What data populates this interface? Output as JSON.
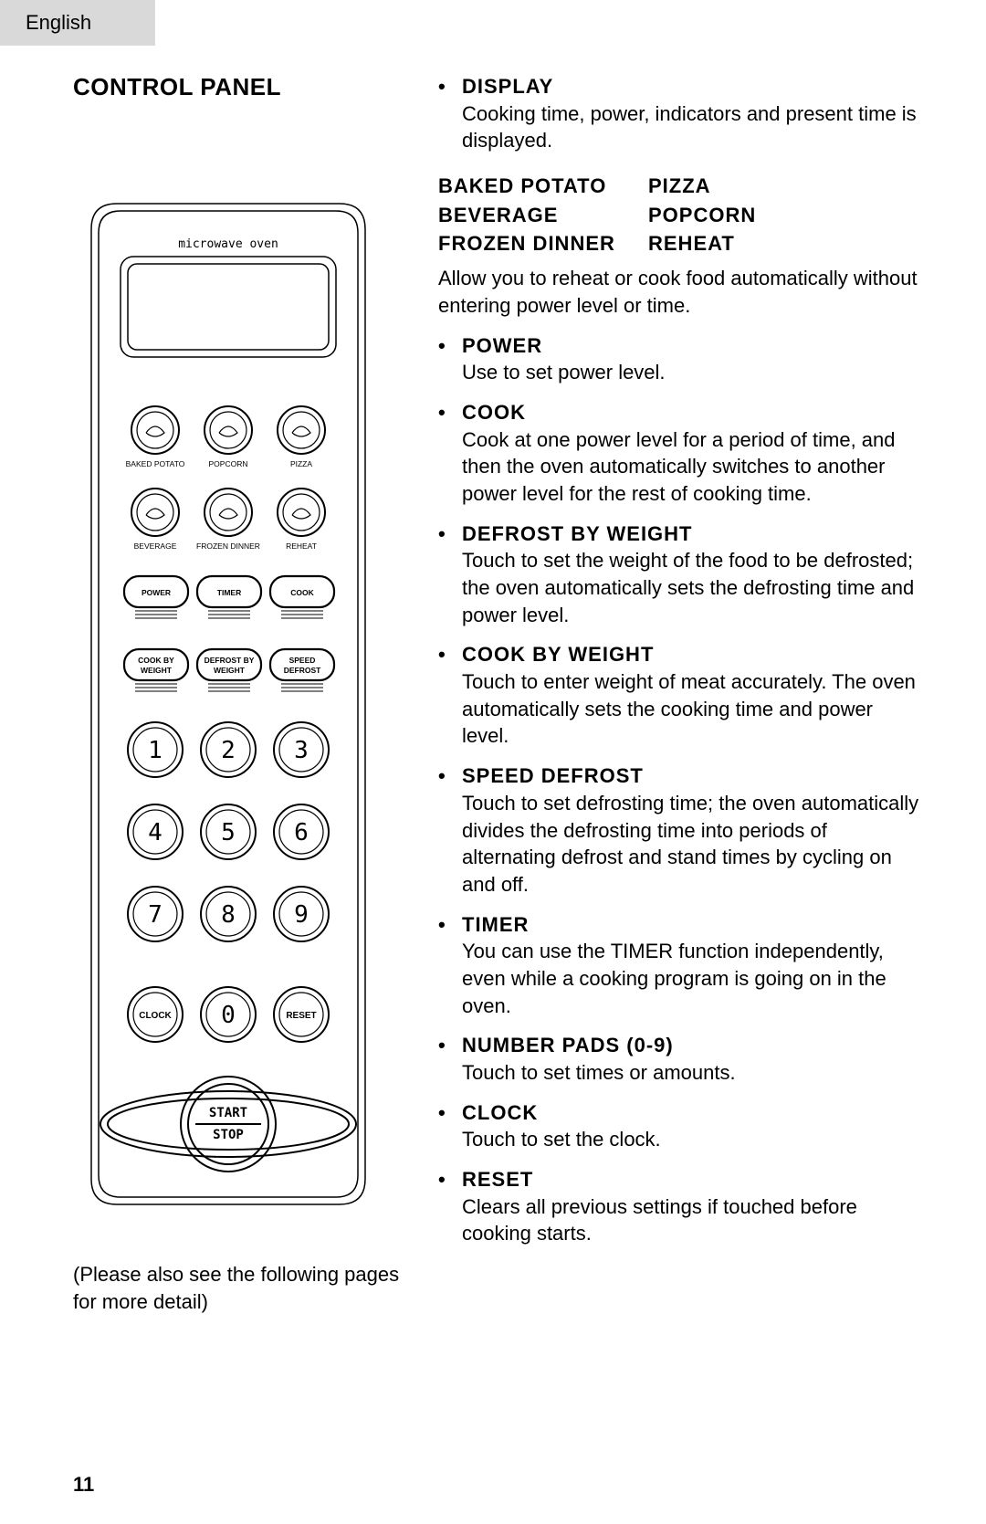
{
  "lang_tab": "English",
  "page_number": "11",
  "left": {
    "title": "CONTROL PANEL",
    "caption": "(Please also see the following pages for more detail)"
  },
  "panel": {
    "brand": "microwave oven",
    "presets": [
      {
        "label": "BAKED POTATO"
      },
      {
        "label": "POPCORN"
      },
      {
        "label": "PIZZA"
      },
      {
        "label": "BEVERAGE"
      },
      {
        "label": "FROZEN DINNER"
      },
      {
        "label": "REHEAT"
      }
    ],
    "func_buttons": [
      {
        "label": "POWER"
      },
      {
        "label": "TIMER"
      },
      {
        "label": "COOK"
      },
      {
        "label": "COOK BY\nWEIGHT"
      },
      {
        "label": "DEFROST BY\nWEIGHT"
      },
      {
        "label": "SPEED\nDEFROST"
      }
    ],
    "digits": [
      "1",
      "2",
      "3",
      "4",
      "5",
      "6",
      "7",
      "8",
      "9"
    ],
    "bottom_row": [
      {
        "label": "CLOCK"
      },
      {
        "label": "0"
      },
      {
        "label": "RESET"
      }
    ],
    "start_stop_top": "START",
    "start_stop_bot": "STOP"
  },
  "right": {
    "first": {
      "head": "DISPLAY",
      "desc": "Cooking time, power, indicators and present time is displayed."
    },
    "preset_grid": [
      [
        "BAKED POTATO",
        "PIZZA"
      ],
      [
        "BEVERAGE",
        "POPCORN"
      ],
      [
        "FROZEN DINNER",
        "REHEAT"
      ]
    ],
    "preset_desc": "Allow you to reheat or cook food automatically without entering power level or time.",
    "bullets": [
      {
        "head": "POWER",
        "desc": "Use to set power level."
      },
      {
        "head": "COOK",
        "desc": "Cook at one power level for a period of time, and then the oven automatically switches to another power level for the rest of cooking time."
      },
      {
        "head": "DEFROST BY WEIGHT",
        "desc": "Touch to set the weight of the food to be defrosted; the oven automatically sets the defrosting time and power level."
      },
      {
        "head": "COOK BY WEIGHT",
        "desc": "Touch to enter weight of meat accurately.  The oven automatically sets the cooking time and power level."
      },
      {
        "head": "SPEED DEFROST",
        "desc": "Touch to set defrosting time; the oven automatically divides the defrosting time into periods of alternating defrost and stand times by cycling on and off."
      },
      {
        "head": "TIMER",
        "desc": "You can use the TIMER function independently, even while a cooking program is going on in the oven."
      },
      {
        "head": "NUMBER PADS (0-9)",
        "desc": "Touch to set times or amounts."
      },
      {
        "head": "CLOCK",
        "desc": "Touch to set the clock."
      },
      {
        "head": "RESET",
        "desc": "Clears all previous settings if touched before cooking starts."
      }
    ]
  },
  "style": {
    "text_color": "#000000",
    "background": "#ffffff",
    "tab_bg": "#d9d9d9",
    "panel_stroke": "#000000",
    "panel_stroke_thin": 1.5,
    "panel_stroke_med": 2,
    "digit_font": 26,
    "small_label_font": 9
  }
}
